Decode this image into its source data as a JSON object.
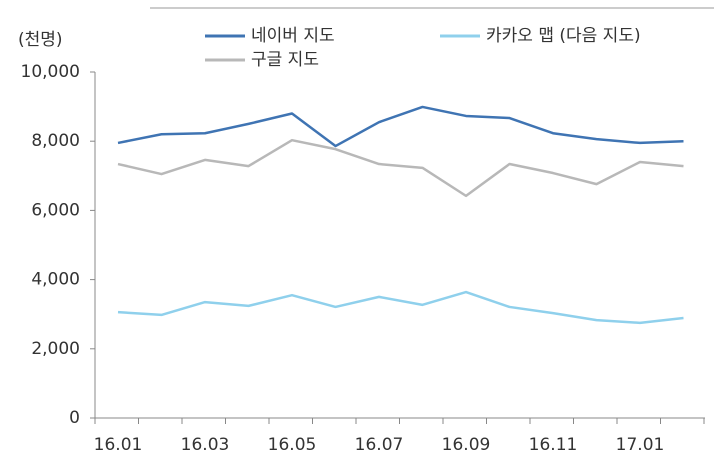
{
  "chart_data": {
    "type": "line",
    "y_axis_label": "(천명)",
    "categories": [
      "16.01",
      null,
      "16.03",
      null,
      "16.05",
      null,
      "16.07",
      null,
      "16.09",
      null,
      "16.11",
      null,
      "17.01",
      null
    ],
    "series": [
      {
        "name": "네이버 지도",
        "color": "#3f74b3",
        "values": [
          7950,
          8200,
          8230,
          8500,
          8800,
          7860,
          8550,
          8990,
          8730,
          8670,
          8230,
          8060,
          7950,
          8000
        ]
      },
      {
        "name": "카카오 맵 (다음 지도)",
        "color": "#8fd0ec",
        "values": [
          3060,
          2980,
          3350,
          3240,
          3550,
          3210,
          3500,
          3270,
          3640,
          3210,
          3030,
          2830,
          2750,
          2890
        ]
      },
      {
        "name": "구글 지도",
        "color": "#b8b8b8",
        "values": [
          7340,
          7050,
          7460,
          7280,
          8030,
          7770,
          7340,
          7230,
          6420,
          7340,
          7080,
          6760,
          7400,
          7280
        ]
      }
    ],
    "ylim": [
      0,
      10000
    ],
    "yticks": [
      0,
      {
        "value": 2000,
        "label": "2,000"
      },
      {
        "value": 4000,
        "label": "4,000"
      },
      {
        "value": 6000,
        "label": "6,000"
      },
      {
        "value": 8000,
        "label": "8,000"
      },
      {
        "value": 10000,
        "label": "10,000"
      }
    ],
    "grid": false,
    "legend": "top"
  }
}
